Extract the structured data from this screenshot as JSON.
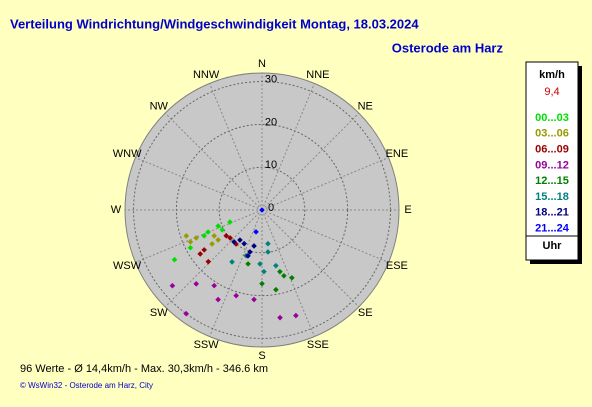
{
  "chart_data": {
    "type": "polar-scatter",
    "title": "Verteilung Windrichtung/Windgeschwindigkeit  Montag, 18.03.2024",
    "subtitle": "Osterode am Harz",
    "directions": [
      "N",
      "NNE",
      "NE",
      "ENE",
      "E",
      "ESE",
      "SE",
      "SSE",
      "S",
      "SSW",
      "SW",
      "WSW",
      "W",
      "WNW",
      "NW",
      "NNW"
    ],
    "rlim": [
      0,
      32
    ],
    "rticks": [
      0,
      10,
      20,
      30
    ],
    "grid": true,
    "legend_title": "km/h",
    "current_speed": "9,4",
    "legend_footer": "Uhr",
    "series": [
      {
        "name": "00...03",
        "color": "#00e000",
        "theta": [
          243.4,
          250,
          247.8,
          245.9,
          240.4,
          242.2,
          249.4
        ],
        "r": [
          10.4,
          10.9,
          13.6,
          14.8,
          23.5,
          18.9,
          8.0
        ]
      },
      {
        "name": "03...06",
        "color": "#999900",
        "theta": [
          251.1,
          246,
          247,
          241.6,
          235.7,
          235.8
        ],
        "r": [
          18.7,
          18.3,
          16.7,
          12.7,
          12.4,
          14.1
        ]
      },
      {
        "name": "06...09",
        "color": "#990000",
        "theta": [
          234.6,
          235.4,
          226.1,
          228.8,
          217.4,
          234.2
        ],
        "r": [
          17.7,
          16.4,
          17.4,
          9.9,
          10.0,
          10.3
        ]
      },
      {
        "name": "09...12",
        "color": "#990099",
        "theta": [
          229.8,
          216.2,
          221.7,
          212.3,
          206.1,
          196.8,
          185.1,
          170.5,
          162.2
        ],
        "r": [
          27.4,
          30.0,
          23.1,
          20.9,
          23.3,
          20.9,
          21.0,
          25.5,
          25.9
        ]
      },
      {
        "name": "12...15",
        "color": "#008000",
        "theta": [
          194.5,
          180,
          170.1,
          161.6,
          156.2,
          163.8
        ],
        "r": [
          13.0,
          17.2,
          18.9,
          16.2,
          17.3,
          15.0
        ]
      },
      {
        "name": "15...18",
        "color": "#008080",
        "theta": [
          210,
          199.2,
          178.2,
          171.9,
          170,
          166,
          182.1
        ],
        "r": [
          14.0,
          11.3,
          14.4,
          9.9,
          8.0,
          13.4,
          12.6
        ]
      },
      {
        "name": "18...21",
        "color": "#000080",
        "theta": [
          216.3,
          207.9,
          196,
          192.5,
          197,
          221.2
        ],
        "r": [
          8.7,
          8.9,
          10.2,
          8.6,
          11.2,
          9.9
        ]
      },
      {
        "name": "21...24",
        "color": "#0000ff",
        "theta": [
          0,
          195.3
        ],
        "r": [
          0,
          5.3
        ]
      }
    ]
  },
  "footer": {
    "stats": "96 Werte   -   Ø 14,4km/h   -   Max. 30,3km/h   -   346.6 km",
    "copyright": "© WsWin32  -  Osterode am Harz, City"
  }
}
